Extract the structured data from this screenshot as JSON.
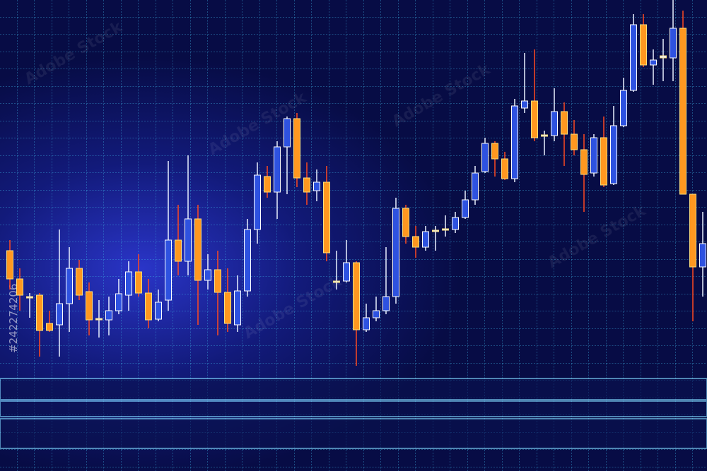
{
  "chart_data": {
    "type": "candlestick",
    "watermark": "Adobe Stock",
    "image_id": "#242274206",
    "ylim": [
      0,
      530
    ],
    "up_color": "#2e52e0",
    "down_color": "#ff9820",
    "flat_color": "#e8f0ff",
    "grid": true,
    "open": [
      175,
      135,
      108,
      112,
      72,
      70,
      100,
      150,
      117,
      79,
      77,
      90,
      112,
      145,
      115,
      78,
      105,
      190,
      160,
      220,
      133,
      148,
      116,
      70,
      118,
      205,
      280,
      258,
      322,
      362,
      278,
      260,
      272,
      130,
      132,
      158,
      63,
      80,
      90,
      110,
      235,
      195,
      180,
      202,
      204,
      205,
      222,
      247,
      287,
      327,
      305,
      277,
      377,
      387,
      337,
      338,
      372,
      340,
      318,
      285,
      335,
      270,
      352,
      402,
      495,
      438,
      448,
      448,
      490,
      255,
      152
    ],
    "high": [
      190,
      150,
      115,
      115,
      90,
      205,
      180,
      162,
      130,
      105,
      110,
      135,
      160,
      170,
      135,
      120,
      302,
      240,
      310,
      240,
      170,
      175,
      150,
      140,
      220,
      300,
      295,
      330,
      365,
      370,
      300,
      290,
      295,
      175,
      190,
      160,
      100,
      110,
      180,
      250,
      240,
      210,
      210,
      210,
      225,
      230,
      260,
      295,
      335,
      330,
      315,
      390,
      455,
      460,
      345,
      405,
      385,
      360,
      340,
      340,
      365,
      380,
      420,
      510,
      510,
      460,
      475,
      530,
      515,
      255,
      230
    ],
    "low": [
      120,
      90,
      80,
      25,
      60,
      25,
      60,
      105,
      55,
      52,
      55,
      85,
      90,
      110,
      65,
      75,
      90,
      140,
      140,
      70,
      120,
      55,
      60,
      60,
      110,
      185,
      250,
      220,
      255,
      265,
      240,
      245,
      160,
      120,
      130,
      12,
      60,
      75,
      85,
      100,
      185,
      165,
      175,
      175,
      195,
      200,
      220,
      240,
      285,
      280,
      275,
      272,
      370,
      330,
      310,
      330,
      295,
      310,
      230,
      280,
      265,
      268,
      350,
      400,
      435,
      410,
      415,
      415,
      255,
      75,
      110
    ],
    "close": [
      135,
      112,
      110,
      62,
      62,
      100,
      150,
      112,
      77,
      77,
      90,
      114,
      145,
      115,
      77,
      102,
      190,
      160,
      220,
      133,
      148,
      116,
      72,
      118,
      205,
      282,
      258,
      322,
      362,
      278,
      258,
      272,
      172,
      132,
      158,
      63,
      80,
      90,
      110,
      235,
      195,
      180,
      202,
      204,
      206,
      222,
      247,
      285,
      327,
      305,
      277,
      380,
      387,
      335,
      339,
      372,
      340,
      318,
      283,
      335,
      268,
      352,
      402,
      495,
      438,
      445,
      451,
      490,
      255,
      152,
      185
    ]
  }
}
